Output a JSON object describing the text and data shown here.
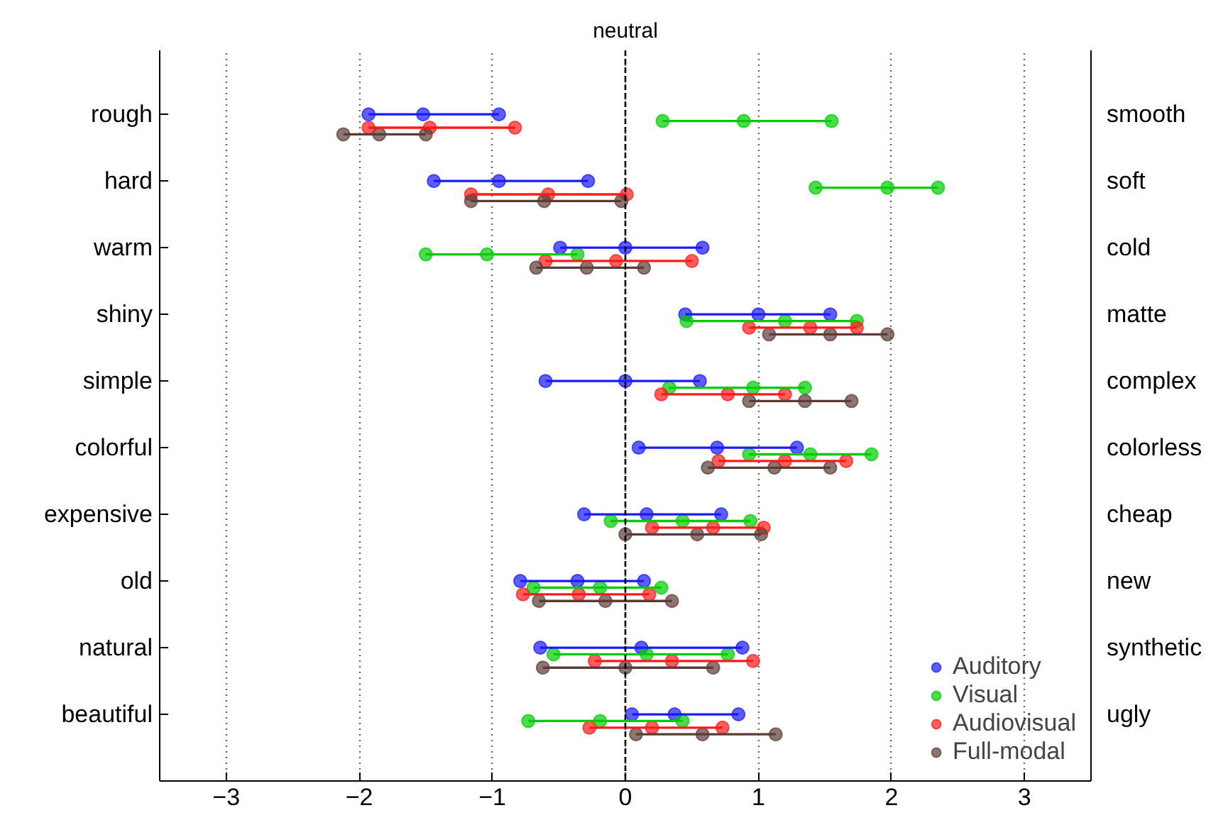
{
  "chart_data": {
    "type": "bar",
    "orientation": "horizontal",
    "categories": [
      "rough",
      "hard",
      "warm",
      "shiny",
      "simple",
      "colorful",
      "expensive",
      "old",
      "natural",
      "beautiful"
    ],
    "y2_categories": [
      "smooth",
      "soft",
      "cold",
      "matte",
      "complex",
      "colorless",
      "cheap",
      "new",
      "synthetic",
      "ugly"
    ],
    "series": [
      {
        "name": "Auditory",
        "color": "#1a1aff",
        "base": [
          -1.93,
          -1.44,
          -0.49,
          0.45,
          -0.6,
          0.1,
          -0.31,
          -0.79,
          -0.64,
          0.05
        ],
        "values": [
          0.98,
          1.16,
          1.07,
          1.09,
          1.16,
          1.19,
          1.03,
          0.93,
          1.52,
          0.8
        ]
      },
      {
        "name": "Visual",
        "color": "#00cc00",
        "base": [
          0.28,
          1.43,
          -1.5,
          0.46,
          0.33,
          0.93,
          -0.11,
          -0.69,
          -0.54,
          -0.73
        ],
        "values": [
          1.27,
          0.92,
          1.14,
          1.28,
          1.02,
          0.92,
          1.05,
          0.96,
          1.31,
          1.16
        ]
      },
      {
        "name": "Audiovisual",
        "color": "#ff1a1a",
        "base": [
          -1.93,
          -1.16,
          -0.6,
          0.93,
          0.27,
          0.7,
          0.2,
          -0.77,
          -0.23,
          -0.27
        ],
        "values": [
          1.1,
          1.17,
          1.1,
          0.81,
          0.93,
          0.96,
          0.84,
          0.95,
          1.19,
          1.0
        ]
      },
      {
        "name": "Full-modal",
        "color": "#5c3a36",
        "base": [
          -2.12,
          -1.16,
          -0.67,
          1.08,
          0.93,
          0.62,
          0.0,
          -0.65,
          -0.62,
          0.08
        ],
        "values": [
          0.62,
          1.13,
          0.81,
          0.89,
          0.77,
          0.92,
          1.02,
          1.0,
          1.28,
          1.05
        ]
      },
      {
        "type": "scatter",
        "color": "#1a1aff",
        "x": [
          "rough",
          "rough",
          "rough",
          "hard",
          "hard",
          "hard",
          "warm",
          "warm",
          "warm",
          "shiny",
          "shiny",
          "shiny",
          "simple",
          "simple",
          "simple",
          "colorful",
          "colorful",
          "colorful",
          "expensive",
          "expensive",
          "expensive",
          "old",
          "old",
          "old",
          "natural",
          "natural",
          "natural",
          "beautiful",
          "beautiful",
          "beautiful"
        ],
        "values": [
          -1.93,
          -1.52,
          -0.95,
          -1.44,
          -0.95,
          -0.28,
          -0.49,
          0.0,
          0.58,
          0.45,
          1.0,
          1.54,
          -0.6,
          0.0,
          0.56,
          0.1,
          0.69,
          1.29,
          -0.31,
          0.16,
          0.72,
          -0.79,
          -0.36,
          0.14,
          -0.64,
          0.12,
          0.88,
          0.05,
          0.37,
          0.85
        ]
      },
      {
        "type": "scatter",
        "color": "#00cc00",
        "x": [
          "rough",
          "rough",
          "rough",
          "hard",
          "hard",
          "hard",
          "warm",
          "warm",
          "warm",
          "shiny",
          "shiny",
          "shiny",
          "simple",
          "simple",
          "simple",
          "colorful",
          "colorful",
          "colorful",
          "expensive",
          "expensive",
          "expensive",
          "old",
          "old",
          "old",
          "natural",
          "natural",
          "natural",
          "beautiful",
          "beautiful",
          "beautiful"
        ],
        "values": [
          0.28,
          0.89,
          1.55,
          1.43,
          1.97,
          2.35,
          -1.5,
          -1.04,
          -0.36,
          0.46,
          1.2,
          1.74,
          0.33,
          0.96,
          1.35,
          0.93,
          1.39,
          1.85,
          -0.11,
          0.43,
          0.94,
          -0.69,
          -0.19,
          0.27,
          -0.54,
          0.16,
          0.77,
          -0.73,
          -0.19,
          0.43
        ]
      },
      {
        "type": "scatter",
        "color": "#ff1a1a",
        "x": [
          "rough",
          "rough",
          "rough",
          "hard",
          "hard",
          "hard",
          "warm",
          "warm",
          "warm",
          "shiny",
          "shiny",
          "shiny",
          "simple",
          "simple",
          "simple",
          "colorful",
          "colorful",
          "colorful",
          "expensive",
          "expensive",
          "expensive",
          "old",
          "old",
          "old",
          "natural",
          "natural",
          "natural",
          "beautiful",
          "beautiful",
          "beautiful"
        ],
        "values": [
          -1.93,
          -1.47,
          -0.83,
          -1.16,
          -0.58,
          0.01,
          -0.6,
          -0.07,
          0.5,
          0.93,
          1.39,
          1.74,
          0.27,
          0.77,
          1.2,
          0.7,
          1.2,
          1.66,
          0.2,
          0.66,
          1.04,
          -0.77,
          -0.35,
          0.18,
          -0.23,
          0.35,
          0.96,
          -0.27,
          0.2,
          0.73
        ]
      },
      {
        "type": "scatter",
        "color": "#5c3a36",
        "x": [
          "rough",
          "rough",
          "rough",
          "hard",
          "hard",
          "hard",
          "warm",
          "warm",
          "warm",
          "shiny",
          "shiny",
          "shiny",
          "simple",
          "simple",
          "simple",
          "colorful",
          "colorful",
          "colorful",
          "expensive",
          "expensive",
          "expensive",
          "old",
          "old",
          "old",
          "natural",
          "natural",
          "natural",
          "beautiful",
          "beautiful",
          "beautiful"
        ],
        "values": [
          -2.12,
          -1.85,
          -1.5,
          -1.16,
          -0.61,
          -0.03,
          -0.67,
          -0.29,
          0.14,
          1.08,
          1.54,
          1.97,
          0.93,
          1.35,
          1.7,
          0.62,
          1.12,
          1.54,
          0.0,
          0.54,
          1.02,
          -0.65,
          -0.15,
          0.35,
          -0.62,
          0.0,
          0.66,
          0.08,
          0.58,
          1.13
        ]
      }
    ],
    "xlim": [
      -3.5,
      3.5
    ],
    "xticks": [
      -3,
      -2,
      -1,
      0,
      1,
      2,
      3
    ],
    "ref_lines": [
      {
        "axis": "x",
        "value": 0,
        "label": "neutral",
        "color": "#000000",
        "line_style": "dashed"
      }
    ],
    "grid": "x",
    "legend": "bottom right",
    "marker": "circle"
  }
}
